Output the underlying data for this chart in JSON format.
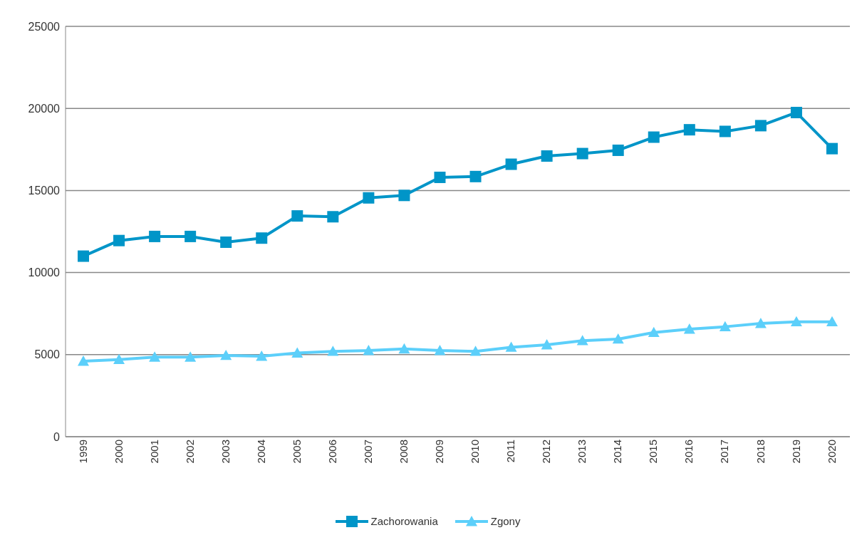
{
  "chart_data": {
    "type": "line",
    "categories": [
      "1999",
      "2000",
      "2001",
      "2002",
      "2003",
      "2004",
      "2005",
      "2006",
      "2007",
      "2008",
      "2009",
      "2010",
      "2011",
      "2012",
      "2013",
      "2014",
      "2015",
      "2016",
      "2017",
      "2018",
      "2019",
      "2020"
    ],
    "series": [
      {
        "name": "Zachorowania",
        "color": "#0095c8",
        "marker": "square",
        "values": [
          11000,
          11950,
          12200,
          12200,
          11850,
          12100,
          13450,
          13400,
          14550,
          14700,
          15800,
          15850,
          16600,
          17100,
          17250,
          17450,
          18250,
          18700,
          18600,
          18950,
          19750,
          17550
        ]
      },
      {
        "name": "Zgony",
        "color": "#5ccffa",
        "marker": "triangle",
        "values": [
          4600,
          4700,
          4850,
          4850,
          4950,
          4900,
          5100,
          5200,
          5250,
          5350,
          5250,
          5200,
          5450,
          5600,
          5850,
          5950,
          6350,
          6550,
          6700,
          6900,
          7000,
          7000
        ]
      }
    ],
    "ylim": [
      0,
      25000
    ],
    "yticks": [
      0,
      5000,
      10000,
      15000,
      20000,
      25000
    ],
    "grid": "y",
    "legend": "bottom",
    "line_style": "solid"
  }
}
